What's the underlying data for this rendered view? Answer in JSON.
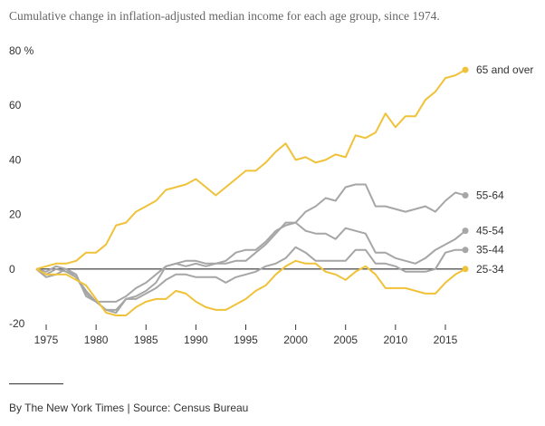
{
  "title": "Cumulative change in inflation-adjusted median income for each age group, since 1974.",
  "source": "By The New York Times | Source: Census Bureau",
  "chart_data": {
    "type": "line",
    "y_unit": "%",
    "ylim": [
      -20,
      80
    ],
    "yticks": [
      -20,
      0,
      20,
      40,
      60,
      80
    ],
    "ytick_labels": [
      "-20",
      "0",
      "20",
      "40",
      "60",
      "80 %"
    ],
    "xlim": [
      1974,
      2017
    ],
    "xticks": [
      1975,
      1980,
      1985,
      1990,
      1995,
      2000,
      2005,
      2010,
      2015
    ],
    "xtick_labels": [
      "1975",
      "1980",
      "1985",
      "1990",
      "1995",
      "2000",
      "2005",
      "2010",
      "2015"
    ],
    "grid": false,
    "zero_line": true,
    "series": [
      {
        "name": "55-64",
        "color": "#a6a6a6",
        "x": [
          1974,
          1975,
          1976,
          1977,
          1978,
          1979,
          1980,
          1981,
          1982,
          1983,
          1984,
          1985,
          1986,
          1987,
          1988,
          1989,
          1990,
          1991,
          1992,
          1993,
          1994,
          1995,
          1996,
          1997,
          1998,
          1999,
          2000,
          2001,
          2002,
          2003,
          2004,
          2005,
          2006,
          2007,
          2008,
          2009,
          2010,
          2011,
          2012,
          2013,
          2014,
          2015,
          2016,
          2017
        ],
        "y": [
          0,
          -2,
          0,
          -1,
          -3,
          -9,
          -12,
          -15,
          -15,
          -11,
          -10,
          -8,
          -5,
          1,
          2,
          3,
          3,
          2,
          2,
          2,
          3,
          3,
          6,
          9,
          13,
          17,
          17,
          21,
          23,
          26,
          25,
          30,
          31,
          31,
          23,
          23,
          22,
          21,
          22,
          23,
          21,
          25,
          28,
          27
        ]
      },
      {
        "name": "45-54",
        "color": "#a6a6a6",
        "x": [
          1974,
          1975,
          1976,
          1977,
          1978,
          1979,
          1980,
          1981,
          1982,
          1983,
          1984,
          1985,
          1986,
          1987,
          1988,
          1989,
          1990,
          1991,
          1992,
          1993,
          1994,
          1995,
          1996,
          1997,
          1998,
          1999,
          2000,
          2001,
          2002,
          2003,
          2004,
          2005,
          2006,
          2007,
          2008,
          2009,
          2010,
          2011,
          2012,
          2013,
          2014,
          2015,
          2016,
          2017
        ],
        "y": [
          0,
          -3,
          -2,
          0,
          -3,
          -8,
          -12,
          -12,
          -12,
          -10,
          -7,
          -5,
          -2,
          1,
          2,
          1,
          2,
          1,
          2,
          3,
          6,
          7,
          7,
          10,
          14,
          16,
          17,
          14,
          13,
          13,
          11,
          15,
          14,
          13,
          6,
          6,
          4,
          3,
          2,
          4,
          7,
          9,
          11,
          14
        ]
      },
      {
        "name": "35-44",
        "color": "#a6a6a6",
        "x": [
          1974,
          1975,
          1976,
          1977,
          1978,
          1979,
          1980,
          1981,
          1982,
          1983,
          1984,
          1985,
          1986,
          1987,
          1988,
          1989,
          1990,
          1991,
          1992,
          1993,
          1994,
          1995,
          1996,
          1997,
          1998,
          1999,
          2000,
          2001,
          2002,
          2003,
          2004,
          2005,
          2006,
          2007,
          2008,
          2009,
          2010,
          2011,
          2012,
          2013,
          2014,
          2015,
          2016,
          2017
        ],
        "y": [
          0,
          -1,
          1,
          0,
          -2,
          -10,
          -12,
          -15,
          -16,
          -11,
          -11,
          -9,
          -7,
          -4,
          -2,
          -2,
          -3,
          -3,
          -3,
          -5,
          -3,
          -2,
          -1,
          1,
          2,
          4,
          8,
          6,
          3,
          3,
          3,
          3,
          7,
          7,
          2,
          2,
          1,
          -1,
          -1,
          -1,
          0,
          6,
          7,
          7
        ]
      },
      {
        "name": "25-34",
        "color": "#f0c23a",
        "x": [
          1974,
          1975,
          1976,
          1977,
          1978,
          1979,
          1980,
          1981,
          1982,
          1983,
          1984,
          1985,
          1986,
          1987,
          1988,
          1989,
          1990,
          1991,
          1992,
          1993,
          1994,
          1995,
          1996,
          1997,
          1998,
          1999,
          2000,
          2001,
          2002,
          2003,
          2004,
          2005,
          2006,
          2007,
          2008,
          2009,
          2010,
          2011,
          2012,
          2013,
          2014,
          2015,
          2016,
          2017
        ],
        "y": [
          0,
          -2,
          -2,
          -2,
          -4,
          -6,
          -11,
          -16,
          -17,
          -17,
          -14,
          -12,
          -11,
          -11,
          -8,
          -9,
          -12,
          -14,
          -15,
          -15,
          -13,
          -11,
          -8,
          -6,
          -2,
          1,
          3,
          2,
          2,
          -1,
          -2,
          -4,
          -1,
          1,
          -2,
          -7,
          -7,
          -7,
          -8,
          -9,
          -9,
          -5,
          -2,
          0
        ]
      },
      {
        "name": "65 and over",
        "color": "#f0c23a",
        "x": [
          1974,
          1975,
          1976,
          1977,
          1978,
          1979,
          1980,
          1981,
          1982,
          1983,
          1984,
          1985,
          1986,
          1987,
          1988,
          1989,
          1990,
          1991,
          1992,
          1993,
          1994,
          1995,
          1996,
          1997,
          1998,
          1999,
          2000,
          2001,
          2002,
          2003,
          2004,
          2005,
          2006,
          2007,
          2008,
          2009,
          2010,
          2011,
          2012,
          2013,
          2014,
          2015,
          2016,
          2017
        ],
        "y": [
          0,
          1,
          2,
          2,
          3,
          6,
          6,
          9,
          16,
          17,
          21,
          23,
          25,
          29,
          30,
          31,
          33,
          30,
          27,
          30,
          33,
          36,
          36,
          39,
          43,
          46,
          40,
          41,
          39,
          40,
          42,
          41,
          49,
          48,
          50,
          57,
          52,
          56,
          56,
          62,
          65,
          70,
          71,
          73
        ]
      }
    ]
  }
}
